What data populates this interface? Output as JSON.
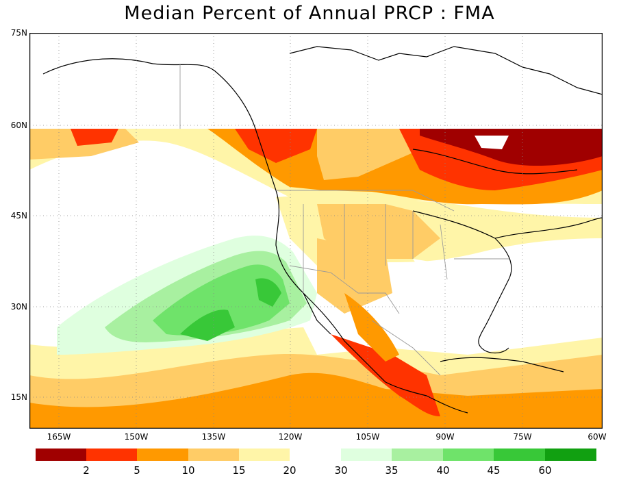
{
  "title": "Median Percent of Annual PRCP  :  FMA",
  "latitude_labels": [
    "75N",
    "60N",
    "45N",
    "30N",
    "15N"
  ],
  "longitude_labels": [
    "165W",
    "150W",
    "135W",
    "120W",
    "105W",
    "90W",
    "75W",
    "60W"
  ],
  "legend": {
    "colors": [
      "#a00000",
      "#ff3300",
      "#ff9900",
      "#ffcc66",
      "#fff5a8",
      "#ffffff",
      "#dfffdf",
      "#a8f0a0",
      "#6fe36a",
      "#38c838",
      "#11a011"
    ],
    "labels": [
      "2",
      "5",
      "10",
      "15",
      "20",
      "30",
      "35",
      "40",
      "45",
      "60"
    ]
  }
}
